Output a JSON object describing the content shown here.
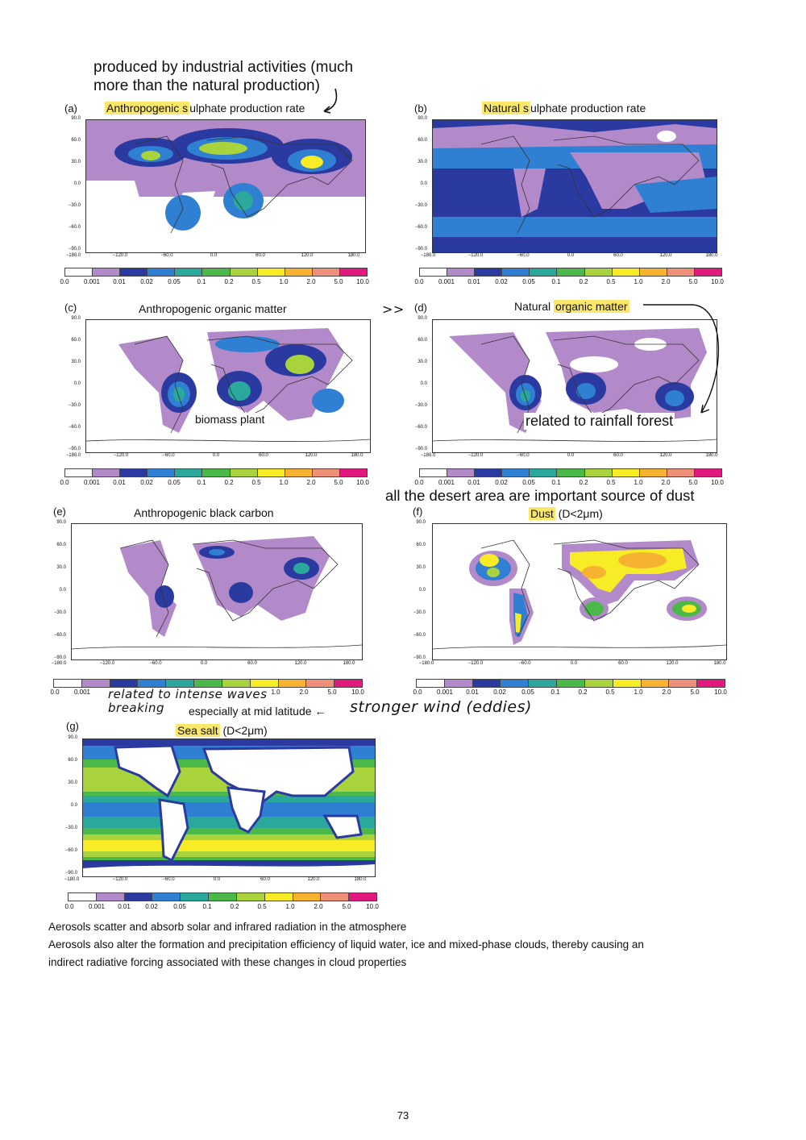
{
  "colors": {
    "scale": [
      "#ffffff",
      "#b38ac9",
      "#2b3aa0",
      "#2f7fd3",
      "#2aa89b",
      "#4cb84a",
      "#a9d33d",
      "#f7ec26",
      "#f5b331",
      "#ee8f7a",
      "#e0197f"
    ],
    "highlight": "#fbe86a"
  },
  "colorbar_labels": [
    "0.0",
    "0.001",
    "0.01",
    "0.02",
    "0.05",
    "0.1",
    "0.2",
    "0.5",
    "1.0",
    "2.0",
    "5.0",
    "10.0"
  ],
  "axes": {
    "y_ticks": [
      "90.0",
      "60.0",
      "30.0",
      "0.0",
      "−30.0",
      "−60.0",
      "−90.0"
    ],
    "x_ticks": [
      "−180.0",
      "−120.0",
      "−60.0",
      "0.0",
      "60.0",
      "120.0",
      "180.0"
    ]
  },
  "panels": [
    {
      "letter": "(a)",
      "title_hl": "Anthropogenic s",
      "title_rest": "ulphate production rate"
    },
    {
      "letter": "(b)",
      "title_hl": "Natural s",
      "title_rest": "ulphate production rate"
    },
    {
      "letter": "(c)",
      "title_plain": "Anthropogenic organic matter"
    },
    {
      "letter": "(d)",
      "title_pre": "Natural ",
      "title_hl": "organic matter"
    },
    {
      "letter": "(e)",
      "title_plain": "Anthropogenic black carbon"
    },
    {
      "letter": "(f)",
      "title_hl": "Dust",
      "title_rest": " (D<2μm)"
    },
    {
      "letter": "(g)",
      "title_hl": "Sea salt",
      "title_rest": " (D<2μm)"
    }
  ],
  "annotations": {
    "industrial_line1": "produced by industrial activities (much",
    "industrial_line2": "more than the natural production)",
    "arrow_marks": ">>",
    "biomass": "biomass plant",
    "rainfall": "related to rainfall forest",
    "desert": "all the desert area are important source of dust",
    "waves_line1": "related to intense waves",
    "waves_line2": "breaking",
    "midlat": "especially at mid latitude ←",
    "wind": "stronger wind (eddies)"
  },
  "body": {
    "line1": "Aerosols scatter and absorb solar and infrared radiation in the atmosphere",
    "line2": "Aerosols also alter the formation and precipitation efficiency of liquid water, ice and mixed-phase clouds, thereby causing an",
    "line3": "indirect radiative forcing associated with these changes in cloud properties"
  },
  "page_number": "73"
}
